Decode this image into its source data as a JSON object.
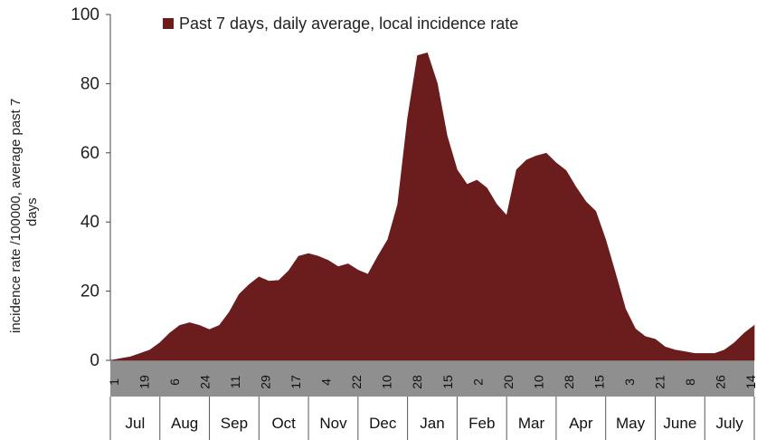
{
  "chart_data": {
    "type": "area",
    "title": "",
    "ylabel": [
      "incidence rate /100000, average past 7",
      "days"
    ],
    "ylim": [
      0,
      100
    ],
    "yticks": [
      0,
      20,
      40,
      60,
      80,
      100
    ],
    "legend": {
      "position": "top",
      "entries": [
        "Past 7 days, daily average, local incidence rate"
      ]
    },
    "series": [
      {
        "name": "Past 7 days, daily average, local incidence rate",
        "color": "#6b1c1c",
        "x_day_labels": [
          "1",
          "19",
          "6",
          "24",
          "11",
          "29",
          "17",
          "4",
          "22",
          "10",
          "28",
          "15",
          "2",
          "20",
          "10",
          "28",
          "15",
          "3",
          "21",
          "8",
          "26",
          "14"
        ],
        "y": [
          0,
          0.5,
          1,
          2,
          3,
          5,
          8,
          10,
          11,
          10,
          9,
          10,
          14,
          19,
          22,
          24,
          23,
          23,
          26,
          30,
          31,
          30,
          29,
          27,
          28,
          26,
          25,
          30,
          35,
          45,
          70,
          88,
          89,
          80,
          65,
          55,
          51,
          52,
          50,
          45,
          42,
          55,
          58,
          59,
          60,
          57,
          55,
          50,
          46,
          43,
          35,
          25,
          15,
          9,
          7,
          6,
          4,
          3,
          2.5,
          2,
          2,
          2,
          3,
          5,
          8,
          10
        ]
      }
    ],
    "x_month_labels": [
      "Jul",
      "Aug",
      "Sep",
      "Oct",
      "Nov",
      "Dec",
      "Jan",
      "Feb",
      "Mar",
      "Apr",
      "May",
      "June",
      "July"
    ]
  }
}
